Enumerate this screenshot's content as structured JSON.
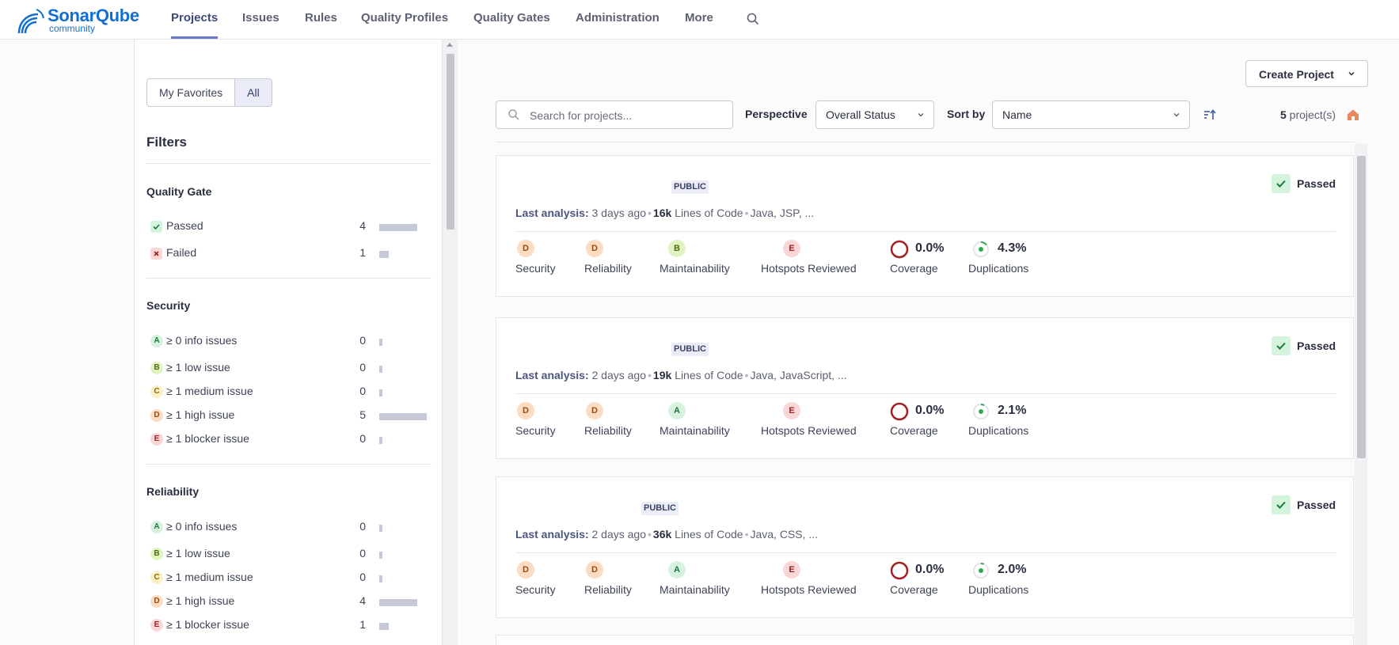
{
  "brand": {
    "name": "SonarQube",
    "edition": "community"
  },
  "nav": {
    "items": [
      {
        "label": "Projects",
        "active": true
      },
      {
        "label": "Issues"
      },
      {
        "label": "Rules"
      },
      {
        "label": "Quality Profiles"
      },
      {
        "label": "Quality Gates"
      },
      {
        "label": "Administration"
      },
      {
        "label": "More"
      }
    ],
    "search_icon": "search-icon"
  },
  "sidebar": {
    "toggle": {
      "favorites": "My Favorites",
      "all": "All",
      "selected": "All"
    },
    "filters_title": "Filters",
    "quality_gate": {
      "title": "Quality Gate",
      "rows": [
        {
          "label": "Passed",
          "count": "4",
          "icon": "check-icon",
          "share": 0.8
        },
        {
          "label": "Failed",
          "count": "1",
          "icon": "cross-icon",
          "share": 0.2
        }
      ]
    },
    "security": {
      "title": "Security",
      "rows": [
        {
          "rating": "A",
          "label": "≥ 0 info issues",
          "count": "0"
        },
        {
          "rating": "B",
          "label": "≥ 1 low issue",
          "count": "0"
        },
        {
          "rating": "C",
          "label": "≥ 1 medium issue",
          "count": "0"
        },
        {
          "rating": "D",
          "label": "≥ 1 high issue",
          "count": "5"
        },
        {
          "rating": "E",
          "label": "≥ 1 blocker issue",
          "count": "0"
        }
      ]
    },
    "reliability": {
      "title": "Reliability",
      "rows": [
        {
          "rating": "A",
          "label": "≥ 0 info issues",
          "count": "0"
        },
        {
          "rating": "B",
          "label": "≥ 1 low issue",
          "count": "0"
        },
        {
          "rating": "C",
          "label": "≥ 1 medium issue",
          "count": "0"
        },
        {
          "rating": "D",
          "label": "≥ 1 high issue",
          "count": "4"
        },
        {
          "rating": "E",
          "label": "≥ 1 blocker issue",
          "count": "1"
        }
      ]
    }
  },
  "toolbar": {
    "create_project": "Create Project",
    "search_placeholder": "Search for projects...",
    "perspective_label": "Perspective",
    "perspective_value": "Overall Status",
    "sort_label": "Sort by",
    "sort_value": "Name",
    "project_count": "5",
    "project_count_suffix": " project(s)"
  },
  "projects": [
    {
      "visibility": "PUBLIC",
      "quality_gate": "Passed",
      "last_analysis_label": "Last analysis:",
      "last_analysis": "3 days ago",
      "loc": "16k",
      "loc_label": "Lines of Code",
      "languages": "Java, JSP, ...",
      "security": "D",
      "reliability": "D",
      "maintainability": "B",
      "hotspots": "E",
      "coverage": "0.0%",
      "duplications": "4.3%"
    },
    {
      "visibility": "PUBLIC",
      "quality_gate": "Passed",
      "last_analysis_label": "Last analysis:",
      "last_analysis": "2 days ago",
      "loc": "19k",
      "loc_label": "Lines of Code",
      "languages": "Java, JavaScript, ...",
      "security": "D",
      "reliability": "D",
      "maintainability": "A",
      "hotspots": "E",
      "coverage": "0.0%",
      "duplications": "2.1%"
    },
    {
      "visibility": "PUBLIC",
      "quality_gate": "Passed",
      "last_analysis_label": "Last analysis:",
      "last_analysis": "2 days ago",
      "loc": "36k",
      "loc_label": "Lines of Code",
      "languages": "Java, CSS, ...",
      "security": "D",
      "reliability": "D",
      "maintainability": "A",
      "hotspots": "E",
      "coverage": "0.0%",
      "duplications": "2.0%"
    }
  ],
  "metric_labels": {
    "security": "Security",
    "reliability": "Reliability",
    "maintainability": "Maintainability",
    "hotspots": "Hotspots Reviewed",
    "coverage": "Coverage",
    "duplications": "Duplications"
  },
  "colors": {
    "accent": "#6a78c9",
    "brand": "#126ed3",
    "passed": "#1c7a3c",
    "failed": "#a32020",
    "coverage_ring": "#a32020",
    "duplication_dot": "#2fa84f"
  }
}
